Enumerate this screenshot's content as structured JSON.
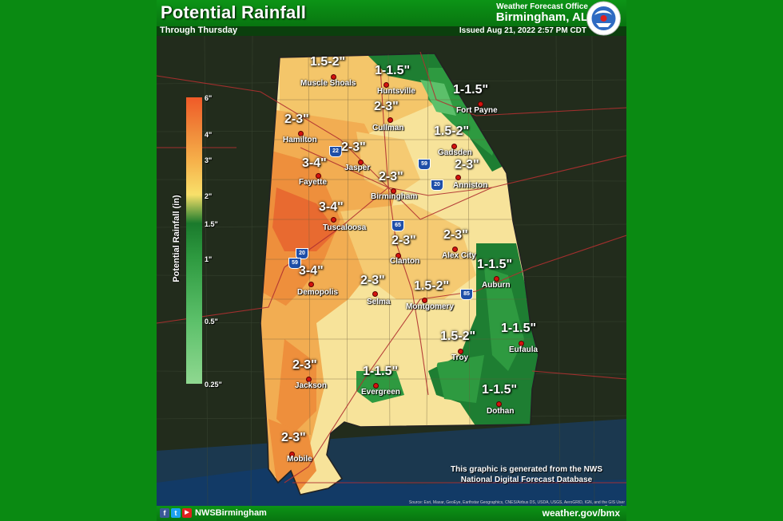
{
  "header": {
    "title": "Potential Rainfall",
    "subtitle": "Through Thursday",
    "office_line": "Weather Forecast Office",
    "office_city": "Birmingham, AL",
    "issued": "Issued Aug 21, 2022 2:57 PM CDT",
    "logo_text": "NATIONAL WEATHER SERVICE"
  },
  "legend": {
    "title": "Potential Rainfall (in)",
    "ticks": [
      {
        "label": "6\"",
        "color": "#f05a28"
      },
      {
        "label": "4\"",
        "color": "#f08a3a"
      },
      {
        "label": "3\"",
        "color": "#f6b04a"
      },
      {
        "label": "2\"",
        "color": "#f8e06a"
      },
      {
        "label": "1.5\"",
        "color": "#1a7a2c"
      },
      {
        "label": "1\"",
        "color": "#2e9a40"
      },
      {
        "label": "0.5\"",
        "color": "#5cc06a"
      },
      {
        "label": "0.25\"",
        "color": "#8fd890"
      }
    ]
  },
  "labels": [
    {
      "amount": "1.5-2\"",
      "city": "Muscle Shoals"
    },
    {
      "amount": "1-1.5\"",
      "city": "Huntsville"
    },
    {
      "amount": "1-1.5\"",
      "city": "Fort Payne"
    },
    {
      "amount": "2-3\"",
      "city": "Cullman"
    },
    {
      "amount": "2-3\"",
      "city": "Hamilton"
    },
    {
      "amount": "1.5-2\"",
      "city": "Gadsden"
    },
    {
      "amount": "2-3\"",
      "city": "Jasper"
    },
    {
      "amount": "3-4\"",
      "city": "Fayette"
    },
    {
      "amount": "2-3\"",
      "city": "Anniston"
    },
    {
      "amount": "2-3\"",
      "city": "Birmingham"
    },
    {
      "amount": "3-4\"",
      "city": "Tuscaloosa"
    },
    {
      "amount": "2-3\"",
      "city": "Clanton"
    },
    {
      "amount": "2-3\"",
      "city": "Alex City"
    },
    {
      "amount": "3-4\"",
      "city": "Demopolis"
    },
    {
      "amount": "1-1.5\"",
      "city": "Auburn"
    },
    {
      "amount": "2-3\"",
      "city": "Selma"
    },
    {
      "amount": "1.5-2\"",
      "city": "Montgomery"
    },
    {
      "amount": "1-1.5\"",
      "city": "Eufaula"
    },
    {
      "amount": "1.5-2\"",
      "city": "Troy"
    },
    {
      "amount": "2-3\"",
      "city": "Jackson"
    },
    {
      "amount": "1-1.5\"",
      "city": "Evergreen"
    },
    {
      "amount": "1-1.5\"",
      "city": "Dothan"
    },
    {
      "amount": "2-3\"",
      "city": "Mobile"
    }
  ],
  "highways": [
    "22",
    "59",
    "20",
    "65",
    "20",
    "59",
    "85"
  ],
  "credit": {
    "line1": "This graphic is generated from the NWS",
    "line2": "National Digital Forecast Database",
    "source": "Source: Esri, Maxar, GeoEye, Earthstar Geographics, CNES/Airbus DS, USDA, USGS, AeroGRID, IGN, and the GIS User Community"
  },
  "footer": {
    "facebook": "f",
    "twitter": "t",
    "youtube": "▶",
    "handle": "NWSBirmingham",
    "website": "weather.gov/bmx"
  }
}
